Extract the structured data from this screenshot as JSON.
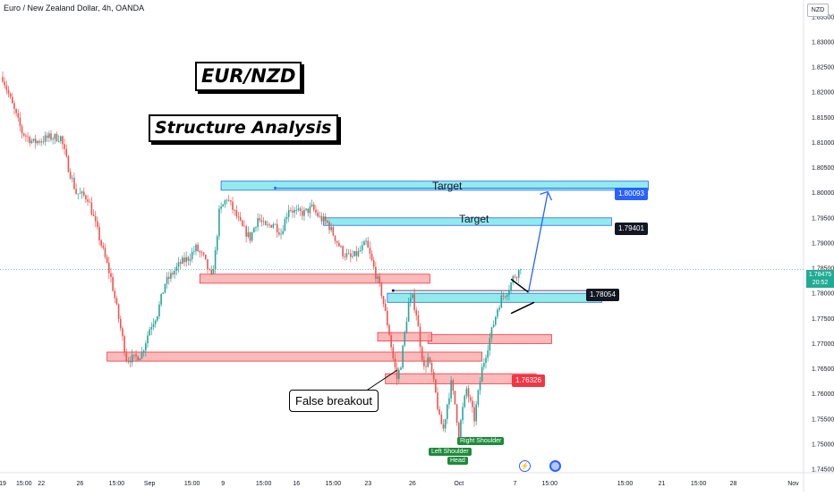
{
  "header": {
    "symbol_title": "Euro / New Zealand Dollar, 4h, OANDA",
    "currency": "NZD"
  },
  "titles": {
    "pair": "EUR/NZD",
    "analysis": "Structure Analysis"
  },
  "annotations": {
    "false_breakout": "False breakout",
    "left_shoulder": "Left Shoulder",
    "head": "Head",
    "right_shoulder": "Right Shoulder"
  },
  "current_price": {
    "value": "1.78475",
    "countdown": "20:52",
    "color": "#22ab94"
  },
  "colors": {
    "up": "#26a69a",
    "down": "#ef5350",
    "resistance_fill": "#f8a9a7",
    "support_fill": "#7ee8e6",
    "arrow": "#2962ff"
  },
  "time_icons": [
    "flash-icon",
    "economic-event-icon"
  ],
  "chart_data": {
    "type": "candlestick",
    "timeframe": "4h",
    "y_ticks": [
      "1.83500",
      "1.83000",
      "1.82500",
      "1.82000",
      "1.81500",
      "1.81000",
      "1.80500",
      "1.80000",
      "1.79500",
      "1.79000",
      "1.78500",
      "1.78000",
      "1.77500",
      "1.77000",
      "1.76500",
      "1.76000",
      "1.75500",
      "1.75000",
      "1.74500"
    ],
    "ylim": [
      1.7443,
      1.8378
    ],
    "x_ticks": [
      {
        "label": "19",
        "i": 0
      },
      {
        "label": "15:00",
        "i": 11
      },
      {
        "label": "22",
        "i": 20
      },
      {
        "label": "26",
        "i": 40
      },
      {
        "label": "15:00",
        "i": 59
      },
      {
        "label": "Sep",
        "i": 76
      },
      {
        "label": "15:00",
        "i": 98
      },
      {
        "label": "9",
        "i": 114
      },
      {
        "label": "15:00",
        "i": 135
      },
      {
        "label": "16",
        "i": 152
      },
      {
        "label": "15:00",
        "i": 171
      },
      {
        "label": "23",
        "i": 189
      },
      {
        "label": "26",
        "i": 212
      },
      {
        "label": "Oct",
        "i": 236
      },
      {
        "label": "7",
        "i": 265
      },
      {
        "label": "15:00",
        "i": 283
      },
      {
        "label": "15:00",
        "i": 322
      },
      {
        "label": "21",
        "i": 341
      },
      {
        "label": "15:00",
        "i": 360
      },
      {
        "label": "28",
        "i": 378
      },
      {
        "label": "Nov",
        "i": 409
      }
    ],
    "anchors": [
      [
        0,
        1.823
      ],
      [
        4,
        1.8185
      ],
      [
        10,
        1.812
      ],
      [
        16,
        1.81
      ],
      [
        20,
        1.8105
      ],
      [
        24,
        1.811
      ],
      [
        30,
        1.811
      ],
      [
        34,
        1.805
      ],
      [
        38,
        1.8
      ],
      [
        44,
        1.799
      ],
      [
        50,
        1.791
      ],
      [
        56,
        1.783
      ],
      [
        60,
        1.775
      ],
      [
        64,
        1.767
      ],
      [
        68,
        1.767
      ],
      [
        72,
        1.768
      ],
      [
        76,
        1.773
      ],
      [
        80,
        1.776
      ],
      [
        84,
        1.782
      ],
      [
        88,
        1.784
      ],
      [
        92,
        1.786
      ],
      [
        96,
        1.787
      ],
      [
        100,
        1.789
      ],
      [
        104,
        1.787
      ],
      [
        108,
        1.783
      ],
      [
        110,
        1.788
      ],
      [
        112,
        1.796
      ],
      [
        116,
        1.799
      ],
      [
        120,
        1.796
      ],
      [
        124,
        1.793
      ],
      [
        128,
        1.791
      ],
      [
        132,
        1.795
      ],
      [
        136,
        1.793
      ],
      [
        140,
        1.794
      ],
      [
        144,
        1.792
      ],
      [
        148,
        1.797
      ],
      [
        152,
        1.796
      ],
      [
        156,
        1.796
      ],
      [
        160,
        1.797
      ],
      [
        164,
        1.795
      ],
      [
        168,
        1.794
      ],
      [
        172,
        1.791
      ],
      [
        176,
        1.788
      ],
      [
        180,
        1.787
      ],
      [
        184,
        1.788
      ],
      [
        188,
        1.79
      ],
      [
        192,
        1.785
      ],
      [
        196,
        1.78
      ],
      [
        198,
        1.776
      ],
      [
        200,
        1.772
      ],
      [
        202,
        1.767
      ],
      [
        204,
        1.763
      ],
      [
        206,
        1.766
      ],
      [
        208,
        1.772
      ],
      [
        210,
        1.778
      ],
      [
        212,
        1.779
      ],
      [
        214,
        1.776
      ],
      [
        216,
        1.77
      ],
      [
        218,
        1.765
      ],
      [
        220,
        1.767
      ],
      [
        222,
        1.764
      ],
      [
        224,
        1.76
      ],
      [
        226,
        1.755
      ],
      [
        228,
        1.753
      ],
      [
        230,
        1.758
      ],
      [
        232,
        1.762
      ],
      [
        234,
        1.758
      ],
      [
        236,
        1.752
      ],
      [
        238,
        1.757
      ],
      [
        240,
        1.761
      ],
      [
        242,
        1.758
      ],
      [
        244,
        1.755
      ],
      [
        246,
        1.76
      ],
      [
        248,
        1.765
      ],
      [
        250,
        1.768
      ],
      [
        252,
        1.771
      ],
      [
        254,
        1.774
      ],
      [
        256,
        1.777
      ],
      [
        258,
        1.779
      ],
      [
        260,
        1.78
      ],
      [
        262,
        1.781
      ],
      [
        264,
        1.783
      ],
      [
        266,
        1.784
      ],
      [
        268,
        1.7847
      ]
    ],
    "zones": [
      {
        "kind": "support",
        "i0": 113,
        "i1": 334,
        "y_low": 1.8005,
        "y_high": 1.8023,
        "flag": "1.80093"
      },
      {
        "kind": "support",
        "i0": 166,
        "i1": 315,
        "y_low": 1.7935,
        "y_high": 1.795,
        "flag": "1.79401"
      },
      {
        "kind": "support",
        "i0": 199,
        "i1": 310,
        "y_low": 1.7782,
        "y_high": 1.78
      },
      {
        "kind": "resistance",
        "i0": 102,
        "i1": 221,
        "y_low": 1.782,
        "y_high": 1.7838
      },
      {
        "kind": "resistance",
        "i0": 54,
        "i1": 248,
        "y_low": 1.7665,
        "y_high": 1.7683
      },
      {
        "kind": "resistance",
        "i0": 198,
        "i1": 276,
        "y_low": 1.762,
        "y_high": 1.764,
        "flag": "1.76326"
      },
      {
        "kind": "resistance",
        "i0": 220,
        "i1": 284,
        "y_low": 1.77,
        "y_high": 1.7718
      },
      {
        "kind": "resistance",
        "i0": 194,
        "i1": 222,
        "y_low": 1.7705,
        "y_high": 1.7722
      }
    ],
    "levels": [
      "1.80093",
      "1.79401",
      "1.78054",
      "1.76326"
    ],
    "zone_labels": [
      "Target",
      "Target"
    ]
  }
}
